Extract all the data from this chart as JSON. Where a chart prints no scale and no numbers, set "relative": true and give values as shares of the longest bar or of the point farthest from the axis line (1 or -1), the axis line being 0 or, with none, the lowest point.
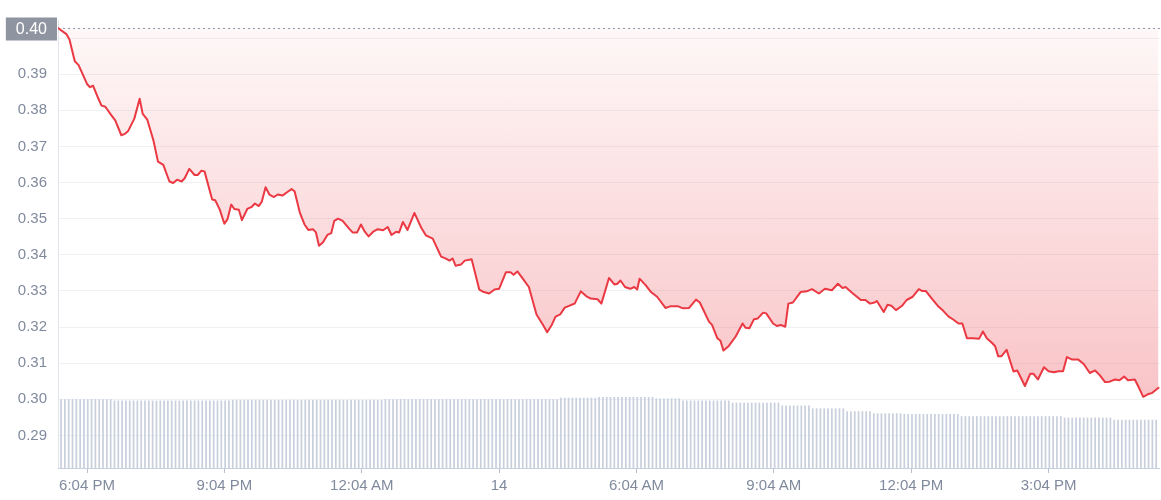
{
  "chart_data": [
    {
      "type": "line",
      "marker": "none",
      "grid": "y",
      "legend": false,
      "x": [
        "--01-13T17:26",
        "--01-13T17:37",
        "--01-13T17:41",
        "--01-13T17:48",
        "--01-13T17:53",
        "--01-13T18:04",
        "--01-13T18:08",
        "--01-13T18:12",
        "--01-13T18:19",
        "--01-13T18:23",
        "--01-13T18:28",
        "--01-13T18:36",
        "--01-13T18:41",
        "--01-13T18:49",
        "--01-13T18:53",
        "--01-13T18:58",
        "--01-13T19:06",
        "--01-13T19:13",
        "--01-13T19:17",
        "--01-13T19:23",
        "--01-13T19:31",
        "--01-13T19:37",
        "--01-13T19:44",
        "--01-13T19:52",
        "--01-13T19:57",
        "--01-13T20:02",
        "--01-13T20:08",
        "--01-13T20:12",
        "--01-13T20:18",
        "--01-13T20:25",
        "--01-13T20:29",
        "--01-13T20:34",
        "--01-13T20:38",
        "--01-13T20:48",
        "--01-13T20:52",
        "--01-13T20:58",
        "--01-13T21:04",
        "--01-13T21:08",
        "--01-13T21:13",
        "--01-13T21:17",
        "--01-13T21:23",
        "--01-13T21:27",
        "--01-13T21:34",
        "--01-13T21:40",
        "--01-13T21:44",
        "--01-13T21:49",
        "--01-13T21:53",
        "--01-13T21:58",
        "--01-13T22:03",
        "--01-13T22:09",
        "--01-13T22:14",
        "--01-13T22:20",
        "--01-13T22:28",
        "--01-13T22:32",
        "--01-13T22:36",
        "--01-13T22:43",
        "--01-13T22:49",
        "--01-13T22:54",
        "--01-13T23:00",
        "--01-13T23:04",
        "--01-13T23:08",
        "--01-13T23:13",
        "--01-13T23:19",
        "--01-13T23:24",
        "--01-13T23:28",
        "--01-13T23:33",
        "--01-13T23:39",
        "--01-13T23:48",
        "--01-13T23:52",
        "--01-13T23:58",
        "--01-14T00:03",
        "--01-14T00:08",
        "--01-14T00:13",
        "--01-14T00:19",
        "--01-14T00:25",
        "--01-14T00:32",
        "--01-14T00:38",
        "--01-14T00:43",
        "--01-14T00:49",
        "--01-14T00:53",
        "--01-14T00:58",
        "--01-14T01:04",
        "--01-14T01:13",
        "--01-14T01:22",
        "--01-14T01:28",
        "--01-14T01:37",
        "--01-14T01:48",
        "--01-14T01:53",
        "--01-14T01:59",
        "--01-14T02:03",
        "--01-14T02:07",
        "--01-14T02:14",
        "--01-14T02:19",
        "--01-14T02:28",
        "--01-14T02:38",
        "--01-14T02:44",
        "--01-14T02:51",
        "--01-14T02:58",
        "--01-14T03:04",
        "--01-14T03:13",
        "--01-14T03:19",
        "--01-14T03:23",
        "--01-14T03:28",
        "--01-14T03:35",
        "--01-14T03:43",
        "--01-14T03:53",
        "--01-14T04:01",
        "--01-14T04:07",
        "--01-14T04:13",
        "--01-14T04:18",
        "--01-14T04:24",
        "--01-14T04:30",
        "--01-14T04:38",
        "--01-14T04:43",
        "--01-14T04:51",
        "--01-14T04:58",
        "--01-14T05:04",
        "--01-14T05:13",
        "--01-14T05:18",
        "--01-14T05:28",
        "--01-14T05:35",
        "--01-14T05:39",
        "--01-14T05:43",
        "--01-14T05:49",
        "--01-14T05:56",
        "--01-14T06:01",
        "--01-14T06:05",
        "--01-14T06:08",
        "--01-14T06:16",
        "--01-14T06:23",
        "--01-14T06:31",
        "--01-14T06:42",
        "--01-14T06:49",
        "--01-14T06:58",
        "--01-14T07:05",
        "--01-14T07:13",
        "--01-14T07:22",
        "--01-14T07:27",
        "--01-14T07:39",
        "--01-14T07:43",
        "--01-14T07:50",
        "--01-14T07:54",
        "--01-14T07:58",
        "--01-14T08:05",
        "--01-14T08:14",
        "--01-14T08:23",
        "--01-14T08:27",
        "--01-14T08:32",
        "--01-14T08:38",
        "--01-14T08:43",
        "--01-14T08:50",
        "--01-14T08:54",
        "--01-14T09:03",
        "--01-14T09:08",
        "--01-14T09:13",
        "--01-14T09:19",
        "--01-14T09:23",
        "--01-14T09:29",
        "--01-14T09:39",
        "--01-14T09:47",
        "--01-14T09:54",
        "--01-14T10:03",
        "--01-14T10:11",
        "--01-14T10:20",
        "--01-14T10:28",
        "--01-14T10:34",
        "--01-14T10:38",
        "--01-14T10:46",
        "--01-14T10:58",
        "--01-14T11:04",
        "--01-14T11:10",
        "--01-14T11:16",
        "--01-14T11:19",
        "--01-14T11:28",
        "--01-14T11:33",
        "--01-14T11:38",
        "--01-14T11:44",
        "--01-14T11:52",
        "--01-14T11:58",
        "--01-14T12:06",
        "--01-14T12:14",
        "--01-14T12:18",
        "--01-14T12:23",
        "--01-14T12:31",
        "--01-14T12:40",
        "--01-14T12:46",
        "--01-14T12:53",
        "--01-14T12:59",
        "--01-14T13:06",
        "--01-14T13:11",
        "--01-14T13:17",
        "--01-14T13:25",
        "--01-14T13:33",
        "--01-14T13:38",
        "--01-14T13:43",
        "--01-14T13:50",
        "--01-14T13:54",
        "--01-14T13:58",
        "--01-14T14:02",
        "--01-14T14:09",
        "--01-14T14:18",
        "--01-14T14:23",
        "--01-14T14:33",
        "--01-14T14:40",
        "--01-14T14:44",
        "--01-14T14:50",
        "--01-14T14:58",
        "--01-14T15:04",
        "--01-14T15:11",
        "--01-14T15:17",
        "--01-14T15:23",
        "--01-14T15:28",
        "--01-14T15:35",
        "--01-14T15:43",
        "--01-14T15:50",
        "--01-14T15:58",
        "--01-14T16:05",
        "--01-14T16:11",
        "--01-14T16:18",
        "--01-14T16:24",
        "--01-14T16:31",
        "--01-14T16:37",
        "--01-14T16:43",
        "--01-14T16:48",
        "--01-14T16:57",
        "--01-14T17:02",
        "--01-14T17:08",
        "--01-14T17:14",
        "--01-14T17:20",
        "--01-14T17:28"
      ],
      "series": [
        {
          "color": "#ea3943",
          "values": [
            0.4028,
            0.4011,
            0.3996,
            0.3936,
            0.3925,
            0.3873,
            0.3864,
            0.3868,
            0.3832,
            0.3813,
            0.381,
            0.3786,
            0.3772,
            0.3731,
            0.3734,
            0.3743,
            0.3777,
            0.3832,
            0.379,
            0.3774,
            0.3717,
            0.3658,
            0.3649,
            0.3603,
            0.3599,
            0.3608,
            0.3603,
            0.3612,
            0.3638,
            0.3621,
            0.3621,
            0.3633,
            0.3631,
            0.3553,
            0.3551,
            0.3525,
            0.3486,
            0.3498,
            0.3539,
            0.3527,
            0.3525,
            0.3496,
            0.3527,
            0.3533,
            0.3542,
            0.3535,
            0.3547,
            0.3587,
            0.3567,
            0.356,
            0.3567,
            0.3564,
            0.3576,
            0.3582,
            0.3576,
            0.3516,
            0.3484,
            0.3469,
            0.3471,
            0.3462,
            0.3425,
            0.3434,
            0.3455,
            0.346,
            0.3494,
            0.35,
            0.3494,
            0.3471,
            0.3462,
            0.3462,
            0.3484,
            0.3464,
            0.3451,
            0.3464,
            0.3471,
            0.3468,
            0.3477,
            0.3455,
            0.3464,
            0.3462,
            0.3491,
            0.3469,
            0.3516,
            0.3475,
            0.3454,
            0.3445,
            0.3395,
            0.3391,
            0.3384,
            0.339,
            0.337,
            0.3373,
            0.3384,
            0.3388,
            0.3304,
            0.3297,
            0.3293,
            0.3304,
            0.3306,
            0.3352,
            0.3352,
            0.3345,
            0.3354,
            0.3334,
            0.3311,
            0.3235,
            0.3208,
            0.3186,
            0.3206,
            0.3229,
            0.3235,
            0.3254,
            0.3261,
            0.3265,
            0.3299,
            0.3286,
            0.3279,
            0.3277,
            0.3265,
            0.3336,
            0.3318,
            0.332,
            0.3329,
            0.3311,
            0.3306,
            0.3311,
            0.3304,
            0.3334,
            0.3316,
            0.3297,
            0.3284,
            0.3253,
            0.3258,
            0.3258,
            0.3252,
            0.3253,
            0.3276,
            0.3268,
            0.3215,
            0.3206,
            0.3169,
            0.3162,
            0.3135,
            0.3148,
            0.3174,
            0.321,
            0.3198,
            0.3197,
            0.3222,
            0.3224,
            0.324,
            0.3238,
            0.321,
            0.3203,
            0.3206,
            0.3201,
            0.3265,
            0.3268,
            0.3297,
            0.3299,
            0.3305,
            0.3293,
            0.3306,
            0.3302,
            0.332,
            0.3308,
            0.3311,
            0.3296,
            0.3275,
            0.3275,
            0.3265,
            0.3268,
            0.3272,
            0.3242,
            0.3262,
            0.3259,
            0.3247,
            0.3259,
            0.3275,
            0.3284,
            0.3305,
            0.33,
            0.33,
            0.3279,
            0.3256,
            0.3245,
            0.3229,
            0.3221,
            0.321,
            0.321,
            0.3169,
            0.3169,
            0.3168,
            0.3188,
            0.3169,
            0.3156,
            0.3147,
            0.3119,
            0.3119,
            0.3137,
            0.3077,
            0.308,
            0.3037,
            0.3071,
            0.3071,
            0.3055,
            0.3089,
            0.3078,
            0.3075,
            0.3078,
            0.3078,
            0.3117,
            0.311,
            0.311,
            0.3098,
            0.3073,
            0.308,
            0.3067,
            0.3048,
            0.3049,
            0.3055,
            0.3053,
            0.3063,
            0.3053,
            0.3055,
            0.3034,
            0.3007,
            0.3014,
            0.3018,
            0.3032
          ],
          "lower": [
            0.4028,
            0.4011,
            0.3996,
            0.3936,
            0.3925,
            0.3873,
            0.3864,
            0.3868,
            0.3832,
            0.3813,
            0.381,
            0.3786,
            0.3772,
            0.3731,
            0.3734,
            0.3743,
            0.3777,
            0.3832,
            0.379,
            0.3774,
            0.3717,
            0.3658,
            0.3649,
            0.3603,
            0.3599,
            0.3608,
            0.3603,
            0.3612,
            0.3638,
            0.3621,
            0.3621,
            0.3633,
            0.3631,
            0.3553,
            0.3551,
            0.3525,
            0.3486,
            0.3498,
            0.3539,
            0.3527,
            0.3525,
            0.3496,
            0.3527,
            0.3533,
            0.3542,
            0.3535,
            0.3547,
            0.3587,
            0.3567,
            0.356,
            0.3567,
            0.3564,
            0.3576,
            0.3582,
            0.3576,
            0.3516,
            0.3484,
            0.3469,
            0.3471,
            0.3462,
            0.3425,
            0.3434,
            0.3455,
            0.346,
            0.3494,
            0.35,
            0.3494,
            0.3471,
            0.3462,
            0.3462,
            0.3484,
            0.3464,
            0.3451,
            0.3464,
            0.3471,
            0.3468,
            0.3477,
            0.3455,
            0.3464,
            0.3462,
            0.3491,
            0.3469,
            0.3516,
            0.3475,
            0.3454,
            0.3445,
            0.3395,
            0.3391,
            0.3384,
            0.339,
            0.337,
            0.3373,
            0.3384,
            0.3388,
            0.3304,
            0.3297,
            0.3293,
            0.3304,
            0.3306,
            0.3352,
            0.3352,
            0.3345,
            0.3354,
            0.3334,
            0.3311,
            0.3235,
            0.3208,
            0.3186,
            0.3206,
            0.3229,
            0.3235,
            0.3254,
            0.3261,
            0.3265,
            0.3299,
            0.3286,
            0.3279,
            0.3277,
            0.3265,
            0.3336,
            0.3318,
            0.332,
            0.3329,
            0.3311,
            0.3306,
            0.3311,
            0.3304,
            0.3334,
            0.3316,
            0.3297,
            0.3284,
            0.3253,
            0.3258,
            0.3258,
            0.3252,
            0.3253,
            0.3276,
            0.3268,
            0.3215,
            0.3206,
            0.3169,
            0.3162,
            0.3135,
            0.3148,
            0.3174,
            0.321,
            0.3198,
            0.3197,
            0.3222,
            0.3224,
            0.324,
            0.3238,
            0.321,
            0.3203,
            0.3206,
            0.3201,
            0.3265,
            0.3268,
            0.3297,
            0.3299,
            0.3305,
            0.3293,
            0.3306,
            0.3302,
            0.332,
            0.3308,
            0.3311,
            0.3296,
            0.3275,
            0.3275,
            0.3265,
            0.3268,
            0.3272,
            0.3242,
            0.3262,
            0.3259,
            0.3247,
            0.3259,
            0.3275,
            0.3284,
            0.3305,
            0.33,
            0.33,
            0.3279,
            0.3256,
            0.3245,
            0.3229,
            0.3221,
            0.321,
            0.321,
            0.3169,
            0.3169,
            0.3168,
            0.3188,
            0.3169,
            0.3156,
            0.3147,
            0.3119,
            0.3119,
            0.3137,
            0.3077,
            0.308,
            0.3037,
            0.3071,
            0.3071,
            0.3055,
            0.3089,
            0.3078,
            0.3075,
            0.3078,
            0.3078,
            0.3117,
            0.311,
            0.311,
            0.3098,
            0.3073,
            0.308,
            0.3067,
            0.3048,
            0.3049,
            0.3055,
            0.3053,
            0.3063,
            0.3053,
            0.3055,
            0.3034,
            0.3007,
            0.3014,
            0.3018,
            0.3032
          ],
          "upper": [
            0.4028,
            0.4028,
            0.4028,
            0.4028,
            0.4028,
            0.4028,
            0.4028,
            0.4028,
            0.4028,
            0.4028,
            0.4028,
            0.4028,
            0.4028,
            0.4028,
            0.4028,
            0.4028,
            0.4028,
            0.4028,
            0.4028,
            0.4028,
            0.4028,
            0.4028,
            0.4028,
            0.4028,
            0.4028,
            0.4028,
            0.4028,
            0.4028,
            0.4028,
            0.4028,
            0.4028,
            0.4028,
            0.4028,
            0.4028,
            0.4028,
            0.4028,
            0.4028,
            0.4028,
            0.4028,
            0.4028,
            0.4028,
            0.4028,
            0.4028,
            0.4028,
            0.4028,
            0.4028,
            0.4028,
            0.4028,
            0.4028,
            0.4028,
            0.4028,
            0.4028,
            0.4028,
            0.4028,
            0.4028,
            0.4028,
            0.4028,
            0.4028,
            0.4028,
            0.4028,
            0.4028,
            0.4028,
            0.4028,
            0.4028,
            0.4028,
            0.4028,
            0.4028,
            0.4028,
            0.4028,
            0.4028,
            0.4028,
            0.4028,
            0.4028,
            0.4028,
            0.4028,
            0.4028,
            0.4028,
            0.4028,
            0.4028,
            0.4028,
            0.4028,
            0.4028,
            0.4028,
            0.4028,
            0.4028,
            0.4028,
            0.4028,
            0.4028,
            0.4028,
            0.4028,
            0.4028,
            0.4028,
            0.4028,
            0.4028,
            0.4028,
            0.4028,
            0.4028,
            0.4028,
            0.4028,
            0.4028,
            0.4028,
            0.4028,
            0.4028,
            0.4028,
            0.4028,
            0.4028,
            0.4028,
            0.4028,
            0.4028,
            0.4028,
            0.4028,
            0.4028,
            0.4028,
            0.4028,
            0.4028,
            0.4028,
            0.4028,
            0.4028,
            0.4028,
            0.4028,
            0.4028,
            0.4028,
            0.4028,
            0.4028,
            0.4028,
            0.4028,
            0.4028,
            0.4028,
            0.4028,
            0.4028,
            0.4028,
            0.4028,
            0.4028,
            0.4028,
            0.4028,
            0.4028,
            0.4028,
            0.4028,
            0.4028,
            0.4028,
            0.4028,
            0.4028,
            0.4028,
            0.4028,
            0.4028,
            0.4028,
            0.4028,
            0.4028,
            0.4028,
            0.4028,
            0.4028,
            0.4028,
            0.4028,
            0.4028,
            0.4028,
            0.4028,
            0.4028,
            0.4028,
            0.4028,
            0.4028,
            0.4028,
            0.4028,
            0.4028,
            0.4028,
            0.4028,
            0.4028,
            0.4028,
            0.4028,
            0.4028,
            0.4028,
            0.4028,
            0.4028,
            0.4028,
            0.4028,
            0.4028,
            0.4028,
            0.4028,
            0.4028,
            0.4028,
            0.4028,
            0.4028,
            0.4028,
            0.4028,
            0.4028,
            0.4028,
            0.4028,
            0.4028,
            0.4028,
            0.4028,
            0.4028,
            0.4028,
            0.4028,
            0.4028,
            0.4028,
            0.4028,
            0.4028,
            0.4028,
            0.4028,
            0.4028,
            0.4028,
            0.4028,
            0.4028,
            0.4028,
            0.4028,
            0.4028,
            0.4028,
            0.4028,
            0.4028,
            0.4028,
            0.4028,
            0.4028,
            0.4028,
            0.4028,
            0.4028,
            0.4028,
            0.4028,
            0.4028,
            0.4028,
            0.4028,
            0.4028,
            0.4028,
            0.4028,
            0.4028,
            0.4028,
            0.4028,
            0.4028,
            0.4028,
            0.4028,
            0.4028,
            0.4028
          ]
        }
      ],
      "xlim": [
        "--01-13T17:26",
        "--01-14T17:30"
      ],
      "xticks": [
        {
          "value": "--01-13T18:04",
          "label": "6:04 PM"
        },
        {
          "value": "--01-13T21:04",
          "label": "9:04 PM"
        },
        {
          "value": "--01-14T00:04",
          "label": "12:04 AM"
        },
        {
          "value": "--01-14T03:04",
          "label": "14"
        },
        {
          "value": "--01-14T06:04",
          "label": "6:04 AM"
        },
        {
          "value": "--01-14T09:04",
          "label": "9:04 AM"
        },
        {
          "value": "--01-14T12:04",
          "label": "12:04 PM"
        },
        {
          "value": "--01-14T15:04",
          "label": "3:04 PM"
        }
      ],
      "ylim": [
        0.281,
        0.405
      ],
      "yticks": [
        0.29,
        {
          "value": 0.3,
          "label": "0.30"
        },
        0.31,
        0.32,
        0.33,
        0.34,
        0.35,
        0.36,
        0.37,
        0.38,
        0.39,
        {
          "value": 0.4,
          "label": null
        }
      ],
      "ref_lines": [
        {
          "axis": "y",
          "value": 0.4028,
          "label": "0.40",
          "color": "#8e94a0",
          "line_style": "dotted"
        }
      ]
    },
    {
      "type": "bar",
      "relative": true,
      "color": "#c8cfdd",
      "tick_labels": false,
      "xlim": [
        "--01-13T17:26",
        "--01-14T17:30"
      ],
      "x": [
        "--01-13T17:30",
        "--01-13T17:35",
        "--01-13T17:40",
        "--01-13T17:45",
        "--01-13T17:50",
        "--01-13T17:55",
        "--01-13T18:00",
        "--01-13T18:05",
        "--01-13T18:10",
        "--01-13T18:15",
        "--01-13T18:20",
        "--01-13T18:25",
        "--01-13T18:30",
        "--01-13T18:35",
        "--01-13T18:40",
        "--01-13T18:45",
        "--01-13T18:50",
        "--01-13T18:55",
        "--01-13T19:00",
        "--01-13T19:05",
        "--01-13T19:10",
        "--01-13T19:15",
        "--01-13T19:20",
        "--01-13T19:25",
        "--01-13T19:30",
        "--01-13T19:35",
        "--01-13T19:40",
        "--01-13T19:45",
        "--01-13T19:50",
        "--01-13T19:55",
        "--01-13T20:00",
        "--01-13T20:05",
        "--01-13T20:10",
        "--01-13T20:15",
        "--01-13T20:20",
        "--01-13T20:25",
        "--01-13T20:30",
        "--01-13T20:35",
        "--01-13T20:40",
        "--01-13T20:45",
        "--01-13T20:50",
        "--01-13T20:55",
        "--01-13T21:00",
        "--01-13T21:05",
        "--01-13T21:10",
        "--01-13T21:15",
        "--01-13T21:20",
        "--01-13T21:25",
        "--01-13T21:30",
        "--01-13T21:35",
        "--01-13T21:40",
        "--01-13T21:45",
        "--01-13T21:50",
        "--01-13T21:55",
        "--01-13T22:00",
        "--01-13T22:05",
        "--01-13T22:10",
        "--01-13T22:15",
        "--01-13T22:20",
        "--01-13T22:25",
        "--01-13T22:30",
        "--01-13T22:35",
        "--01-13T22:40",
        "--01-13T22:45",
        "--01-13T22:50",
        "--01-13T22:55",
        "--01-13T23:00",
        "--01-13T23:05",
        "--01-13T23:10",
        "--01-13T23:15",
        "--01-13T23:20",
        "--01-13T23:25",
        "--01-13T23:30",
        "--01-13T23:35",
        "--01-13T23:40",
        "--01-13T23:45",
        "--01-13T23:50",
        "--01-13T23:55",
        "--01-14T00:00",
        "--01-14T00:05",
        "--01-14T00:10",
        "--01-14T00:15",
        "--01-14T00:20",
        "--01-14T00:25",
        "--01-14T00:30",
        "--01-14T00:35",
        "--01-14T00:40",
        "--01-14T00:45",
        "--01-14T00:50",
        "--01-14T00:55",
        "--01-14T01:00",
        "--01-14T01:05",
        "--01-14T01:10",
        "--01-14T01:15",
        "--01-14T01:20",
        "--01-14T01:25",
        "--01-14T01:30",
        "--01-14T01:35",
        "--01-14T01:40",
        "--01-14T01:45",
        "--01-14T01:50",
        "--01-14T01:55",
        "--01-14T02:00",
        "--01-14T02:05",
        "--01-14T02:10",
        "--01-14T02:15",
        "--01-14T02:20",
        "--01-14T02:25",
        "--01-14T02:30",
        "--01-14T02:35",
        "--01-14T02:40",
        "--01-14T02:45",
        "--01-14T02:50",
        "--01-14T02:55",
        "--01-14T03:00",
        "--01-14T03:05",
        "--01-14T03:10",
        "--01-14T03:15",
        "--01-14T03:20",
        "--01-14T03:25",
        "--01-14T03:30",
        "--01-14T03:35",
        "--01-14T03:40",
        "--01-14T03:45",
        "--01-14T03:50",
        "--01-14T03:55",
        "--01-14T04:00",
        "--01-14T04:05",
        "--01-14T04:10",
        "--01-14T04:15",
        "--01-14T04:20",
        "--01-14T04:25",
        "--01-14T04:30",
        "--01-14T04:35",
        "--01-14T04:40",
        "--01-14T04:45",
        "--01-14T04:50",
        "--01-14T04:55",
        "--01-14T05:00",
        "--01-14T05:05",
        "--01-14T05:10",
        "--01-14T05:15",
        "--01-14T05:20",
        "--01-14T05:25",
        "--01-14T05:30",
        "--01-14T05:35",
        "--01-14T05:40",
        "--01-14T05:45",
        "--01-14T05:50",
        "--01-14T05:55",
        "--01-14T06:00",
        "--01-14T06:05",
        "--01-14T06:10",
        "--01-14T06:15",
        "--01-14T06:20",
        "--01-14T06:25",
        "--01-14T06:30",
        "--01-14T06:35",
        "--01-14T06:40",
        "--01-14T06:45",
        "--01-14T06:50",
        "--01-14T06:55",
        "--01-14T07:00",
        "--01-14T07:05",
        "--01-14T07:10",
        "--01-14T07:15",
        "--01-14T07:20",
        "--01-14T07:25",
        "--01-14T07:30",
        "--01-14T07:35",
        "--01-14T07:40",
        "--01-14T07:45",
        "--01-14T07:50",
        "--01-14T07:55",
        "--01-14T08:00",
        "--01-14T08:05",
        "--01-14T08:10",
        "--01-14T08:15",
        "--01-14T08:20",
        "--01-14T08:25",
        "--01-14T08:30",
        "--01-14T08:35",
        "--01-14T08:40",
        "--01-14T08:45",
        "--01-14T08:50",
        "--01-14T08:55",
        "--01-14T09:00",
        "--01-14T09:05",
        "--01-14T09:10",
        "--01-14T09:15",
        "--01-14T09:20",
        "--01-14T09:25",
        "--01-14T09:30",
        "--01-14T09:35",
        "--01-14T09:40",
        "--01-14T09:45",
        "--01-14T09:50",
        "--01-14T09:55",
        "--01-14T10:00",
        "--01-14T10:05",
        "--01-14T10:10",
        "--01-14T10:15",
        "--01-14T10:20",
        "--01-14T10:25",
        "--01-14T10:30",
        "--01-14T10:35",
        "--01-14T10:40",
        "--01-14T10:45",
        "--01-14T10:50",
        "--01-14T10:55",
        "--01-14T11:00",
        "--01-14T11:05",
        "--01-14T11:10",
        "--01-14T11:15",
        "--01-14T11:20",
        "--01-14T11:25",
        "--01-14T11:30",
        "--01-14T11:35",
        "--01-14T11:40",
        "--01-14T11:45",
        "--01-14T11:50",
        "--01-14T11:55",
        "--01-14T12:00",
        "--01-14T12:05",
        "--01-14T12:10",
        "--01-14T12:15",
        "--01-14T12:20",
        "--01-14T12:25",
        "--01-14T12:30",
        "--01-14T12:35",
        "--01-14T12:40",
        "--01-14T12:45",
        "--01-14T12:50",
        "--01-14T12:55",
        "--01-14T13:00",
        "--01-14T13:05",
        "--01-14T13:10",
        "--01-14T13:15",
        "--01-14T13:20",
        "--01-14T13:25",
        "--01-14T13:30",
        "--01-14T13:35",
        "--01-14T13:40",
        "--01-14T13:45",
        "--01-14T13:50",
        "--01-14T13:55",
        "--01-14T14:00",
        "--01-14T14:05",
        "--01-14T14:10",
        "--01-14T14:15",
        "--01-14T14:20",
        "--01-14T14:25",
        "--01-14T14:30",
        "--01-14T14:35",
        "--01-14T14:40",
        "--01-14T14:45",
        "--01-14T14:50",
        "--01-14T14:55",
        "--01-14T15:00",
        "--01-14T15:05",
        "--01-14T15:10",
        "--01-14T15:15",
        "--01-14T15:20",
        "--01-14T15:25",
        "--01-14T15:30",
        "--01-14T15:35",
        "--01-14T15:40",
        "--01-14T15:45",
        "--01-14T15:50",
        "--01-14T15:55",
        "--01-14T16:00",
        "--01-14T16:05",
        "--01-14T16:10",
        "--01-14T16:15",
        "--01-14T16:20",
        "--01-14T16:25",
        "--01-14T16:30",
        "--01-14T16:35",
        "--01-14T16:40",
        "--01-14T16:45",
        "--01-14T16:50",
        "--01-14T16:55",
        "--01-14T17:00",
        "--01-14T17:05",
        "--01-14T17:10",
        "--01-14T17:15",
        "--01-14T17:20",
        "--01-14T17:25"
      ],
      "values": [
        0.97,
        0.97,
        0.97,
        0.97,
        0.97,
        0.97,
        0.97,
        0.97,
        0.97,
        0.97,
        0.97,
        0.97,
        0.97,
        0.97,
        0.95,
        0.95,
        0.95,
        0.95,
        0.95,
        0.95,
        0.95,
        0.95,
        0.95,
        0.95,
        0.95,
        0.95,
        0.95,
        0.95,
        0.95,
        0.95,
        0.95,
        0.95,
        0.95,
        0.95,
        0.95,
        0.95,
        0.95,
        0.95,
        0.95,
        0.95,
        0.95,
        0.95,
        0.95,
        0.95,
        0.95,
        0.96,
        0.96,
        0.96,
        0.96,
        0.96,
        0.96,
        0.96,
        0.96,
        0.96,
        0.96,
        0.96,
        0.96,
        0.96,
        0.96,
        0.96,
        0.96,
        0.96,
        0.96,
        0.96,
        0.96,
        0.96,
        0.96,
        0.96,
        0.96,
        0.96,
        0.96,
        0.96,
        0.96,
        0.96,
        0.96,
        0.96,
        0.96,
        0.96,
        0.96,
        0.96,
        0.96,
        0.96,
        0.96,
        0.96,
        0.96,
        0.97,
        0.97,
        0.97,
        0.97,
        0.97,
        0.97,
        0.97,
        0.97,
        0.97,
        0.97,
        0.97,
        0.97,
        0.97,
        0.97,
        0.97,
        0.97,
        0.97,
        0.97,
        0.97,
        0.97,
        0.97,
        0.97,
        0.97,
        0.97,
        0.97,
        0.97,
        0.97,
        0.97,
        0.97,
        0.97,
        0.97,
        0.97,
        0.97,
        0.97,
        0.97,
        0.97,
        0.97,
        0.97,
        0.97,
        0.97,
        0.97,
        0.97,
        0.97,
        0.97,
        0.97,
        0.97,
        0.99,
        0.99,
        0.99,
        0.99,
        0.99,
        0.99,
        0.99,
        0.99,
        0.99,
        0.99,
        1,
        1,
        1,
        1,
        1,
        1,
        1,
        1,
        1,
        1,
        1,
        1,
        1,
        1,
        1,
        0.98,
        0.98,
        0.98,
        0.98,
        0.98,
        0.98,
        0.98,
        0.95,
        0.95,
        0.95,
        0.95,
        0.95,
        0.95,
        0.95,
        0.95,
        0.95,
        0.95,
        0.95,
        0.95,
        0.95,
        0.92,
        0.92,
        0.92,
        0.92,
        0.92,
        0.92,
        0.92,
        0.92,
        0.92,
        0.92,
        0.92,
        0.92,
        0.92,
        0.88,
        0.88,
        0.88,
        0.88,
        0.88,
        0.88,
        0.88,
        0.88,
        0.84,
        0.84,
        0.84,
        0.84,
        0.84,
        0.84,
        0.84,
        0.84,
        0.84,
        0.8,
        0.8,
        0.8,
        0.8,
        0.8,
        0.8,
        0.8,
        0.77,
        0.77,
        0.77,
        0.77,
        0.77,
        0.77,
        0.77,
        0.77,
        0.76,
        0.76,
        0.76,
        0.76,
        0.76,
        0.76,
        0.76,
        0.76,
        0.76,
        0.76,
        0.76,
        0.76,
        0.76,
        0.76,
        0.76,
        0.73,
        0.73,
        0.73,
        0.73,
        0.73,
        0.73,
        0.73,
        0.73,
        0.73,
        0.73,
        0.73,
        0.73,
        0.73,
        0.73,
        0.73,
        0.73,
        0.73,
        0.73,
        0.73,
        0.73,
        0.73,
        0.73,
        0.73,
        0.73,
        0.73,
        0.73,
        0.73,
        0.71,
        0.71,
        0.71,
        0.71,
        0.71,
        0.71,
        0.71,
        0.71,
        0.71,
        0.71,
        0.71,
        0.71,
        0.71,
        0.68,
        0.68,
        0.68,
        0.68,
        0.68,
        0.68,
        0.68,
        0.68,
        0.68,
        0.68,
        0.68,
        0.68
      ]
    }
  ]
}
